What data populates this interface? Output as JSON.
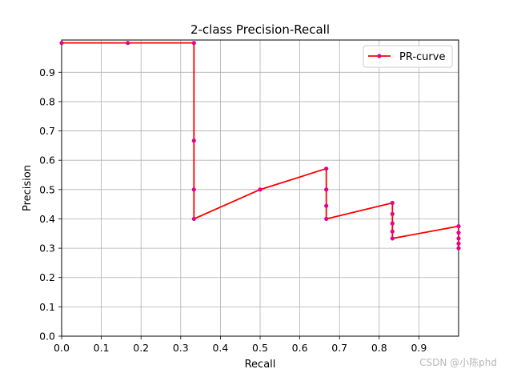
{
  "chart_data": {
    "type": "line",
    "title": "2-class Precision-Recall",
    "xlabel": "Recall",
    "ylabel": "Precision",
    "xlim": [
      0,
      1
    ],
    "ylim": [
      0,
      1.01
    ],
    "xticks": [
      "0.0",
      "0.1",
      "0.2",
      "0.3",
      "0.4",
      "0.5",
      "0.6",
      "0.7",
      "0.8",
      "0.9"
    ],
    "yticks": [
      "0.0",
      "0.1",
      "0.2",
      "0.3",
      "0.4",
      "0.5",
      "0.6",
      "0.7",
      "0.8",
      "0.9"
    ],
    "grid": true,
    "legend_position": "upper right",
    "series": [
      {
        "name": "PR-curve",
        "line_color": "#ff0000",
        "marker_color": "#e6008c",
        "points": [
          [
            0.0,
            1.0
          ],
          [
            0.1667,
            1.0
          ],
          [
            0.3333,
            1.0
          ],
          [
            0.3333,
            0.6667
          ],
          [
            0.3333,
            0.5
          ],
          [
            0.3333,
            0.4
          ],
          [
            0.5,
            0.5
          ],
          [
            0.6667,
            0.5714
          ],
          [
            0.6667,
            0.5
          ],
          [
            0.6667,
            0.4444
          ],
          [
            0.6667,
            0.4
          ],
          [
            0.8333,
            0.4545
          ],
          [
            0.8333,
            0.4167
          ],
          [
            0.8333,
            0.3846
          ],
          [
            0.8333,
            0.3571
          ],
          [
            0.8333,
            0.3333
          ],
          [
            1.0,
            0.375
          ],
          [
            1.0,
            0.3529
          ],
          [
            1.0,
            0.3333
          ],
          [
            1.0,
            0.3158
          ],
          [
            1.0,
            0.3
          ]
        ]
      }
    ]
  },
  "watermark": "CSDN @小陈phd"
}
